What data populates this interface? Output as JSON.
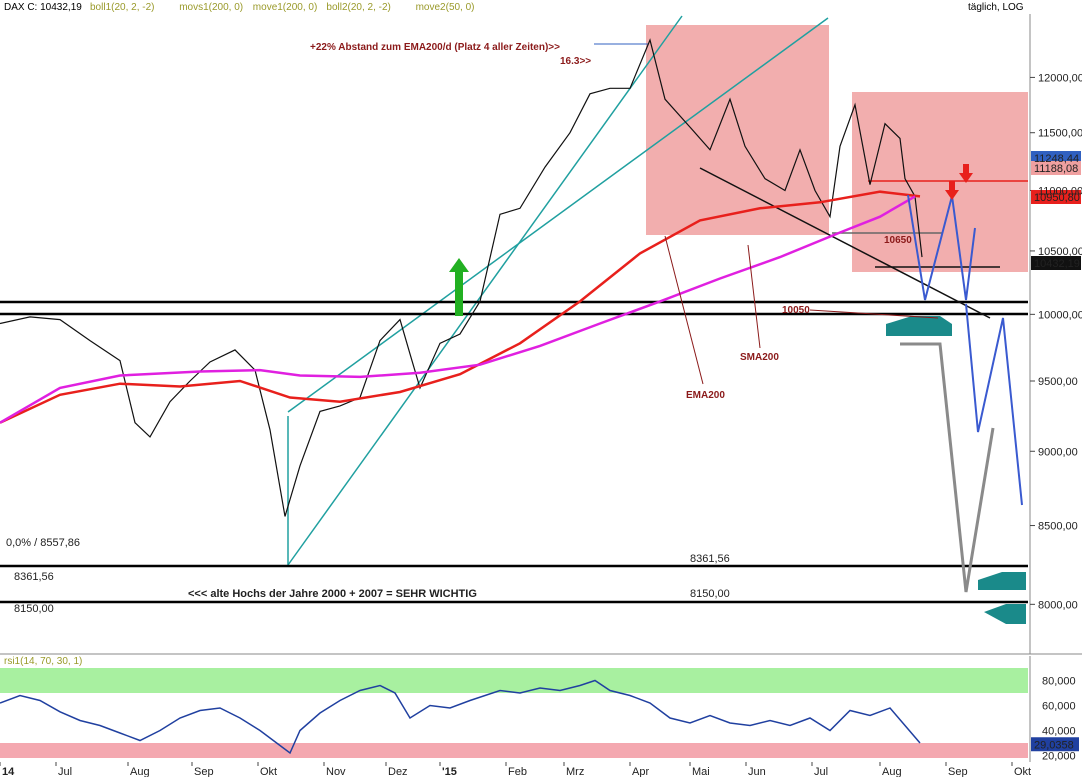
{
  "header": {
    "symbol": "DAX C: 10432,19",
    "indicators": [
      {
        "text": "boll1(20, 2, -2)",
        "color": "#9a9a2a"
      },
      {
        "text": "movs1(200, 0)",
        "color": "#9a9a2a"
      },
      {
        "text": "move1(200, 0)",
        "color": "#9a9a2a"
      },
      {
        "text": "boll2(20, 2, -2)",
        "color": "#9a9a2a"
      },
      {
        "text": "move2(50, 0)",
        "color": "#9a9a2a"
      }
    ],
    "scale": "täglich, LOG"
  },
  "rsi_header": "rsi1(14, 70, 30, 1)",
  "chart_data": [
    {
      "type": "line",
      "title": "DAX C: 10432,19",
      "log_scale": true,
      "ylim": [
        7700,
        12600
      ],
      "y_ticks": [
        "12000,00",
        "11500,00",
        "11000,00",
        "10500,00",
        "10000,00",
        "9500,00",
        "9000,00",
        "8500,00",
        "8000,00"
      ],
      "y_tick_values": [
        12000,
        11500,
        11000,
        10500,
        10000,
        9500,
        9000,
        8500,
        8000
      ],
      "x_ticks": [
        "14",
        "Jul",
        "Aug",
        "Sep",
        "Okt",
        "Nov",
        "Dez",
        "'15",
        "Feb",
        "Mrz",
        "Apr",
        "Mai",
        "Jun",
        "Jul",
        "Aug",
        "Sep",
        "Okt"
      ],
      "x_tick_index": [
        0,
        56,
        128,
        192,
        258,
        324,
        386,
        440,
        506,
        564,
        630,
        690,
        746,
        812,
        880,
        946,
        1012
      ],
      "series": [
        {
          "name": "DAX",
          "color": "#111111",
          "points": [
            [
              0,
              9930
            ],
            [
              30,
              9980
            ],
            [
              60,
              9960
            ],
            [
              90,
              9800
            ],
            [
              120,
              9650
            ],
            [
              135,
              9200
            ],
            [
              150,
              9100
            ],
            [
              170,
              9350
            ],
            [
              190,
              9500
            ],
            [
              210,
              9640
            ],
            [
              235,
              9730
            ],
            [
              255,
              9580
            ],
            [
              270,
              9150
            ],
            [
              285,
              8560
            ],
            [
              300,
              8900
            ],
            [
              320,
              9280
            ],
            [
              340,
              9320
            ],
            [
              360,
              9380
            ],
            [
              380,
              9800
            ],
            [
              400,
              9960
            ],
            [
              410,
              9700
            ],
            [
              420,
              9450
            ],
            [
              440,
              9780
            ],
            [
              460,
              9850
            ],
            [
              480,
              10100
            ],
            [
              500,
              10800
            ],
            [
              520,
              10850
            ],
            [
              545,
              11200
            ],
            [
              570,
              11500
            ],
            [
              590,
              11850
            ],
            [
              610,
              11900
            ],
            [
              630,
              11900
            ],
            [
              650,
              12350
            ],
            [
              665,
              11800
            ],
            [
              690,
              11550
            ],
            [
              710,
              11350
            ],
            [
              730,
              11800
            ],
            [
              745,
              11380
            ],
            [
              765,
              11100
            ],
            [
              785,
              11000
            ],
            [
              800,
              11350
            ],
            [
              815,
              11000
            ],
            [
              830,
              10780
            ],
            [
              840,
              11380
            ],
            [
              855,
              11750
            ],
            [
              870,
              11050
            ],
            [
              885,
              11580
            ],
            [
              900,
              11450
            ],
            [
              905,
              11100
            ],
            [
              915,
              10950
            ],
            [
              922,
              10450
            ]
          ]
        },
        {
          "name": "EMA200",
          "color": "#e8201c",
          "points": [
            [
              0,
              9200
            ],
            [
              60,
              9400
            ],
            [
              120,
              9480
            ],
            [
              180,
              9460
            ],
            [
              240,
              9500
            ],
            [
              290,
              9380
            ],
            [
              340,
              9350
            ],
            [
              400,
              9420
            ],
            [
              460,
              9550
            ],
            [
              520,
              9780
            ],
            [
              580,
              10100
            ],
            [
              640,
              10480
            ],
            [
              700,
              10750
            ],
            [
              760,
              10850
            ],
            [
              820,
              10900
            ],
            [
              880,
              10990
            ],
            [
              920,
              10950
            ]
          ]
        },
        {
          "name": "SMA200",
          "color": "#e020e0",
          "points": [
            [
              0,
              9200
            ],
            [
              60,
              9450
            ],
            [
              120,
              9540
            ],
            [
              200,
              9570
            ],
            [
              260,
              9580
            ],
            [
              300,
              9540
            ],
            [
              360,
              9530
            ],
            [
              420,
              9560
            ],
            [
              480,
              9620
            ],
            [
              540,
              9760
            ],
            [
              600,
              9930
            ],
            [
              660,
              10100
            ],
            [
              720,
              10280
            ],
            [
              780,
              10450
            ],
            [
              840,
              10650
            ],
            [
              880,
              10780
            ],
            [
              915,
              10950
            ]
          ]
        }
      ],
      "annotations": [
        {
          "text": "+22% Abstand zum EMA200/d (Platz 4 aller Zeiten)>>",
          "color": "#8b1a1a"
        },
        {
          "text": "16.3>>",
          "color": "#8b1a1a"
        },
        {
          "text": "10650",
          "color": "#8b1a1a"
        },
        {
          "text": "10050",
          "color": "#8b1a1a"
        },
        {
          "text": "SMA200",
          "color": "#8b1a1a"
        },
        {
          "text": "EMA200",
          "color": "#8b1a1a"
        },
        {
          "text": "<<< alte Hochs der Jahre 2000 + 2007 = SEHR WICHTIG",
          "color": "#222222"
        },
        {
          "text": "8361,56",
          "color": "#222222"
        },
        {
          "text": "8150,00",
          "color": "#222222"
        },
        {
          "text": "0,0% / 8557,86",
          "color": "#2a9a9a"
        }
      ],
      "price_labels": [
        {
          "text": "11248,44",
          "bg": "#3060c0"
        },
        {
          "text": "11188,08",
          "bg": "#f0a0a0"
        },
        {
          "text": "10950,80",
          "bg": "#e8201c"
        },
        {
          "text": "10432,19",
          "bg": "#111111"
        }
      ]
    },
    {
      "type": "line",
      "title": "rsi1(14, 70, 30, 1)",
      "ylim": [
        18,
        90
      ],
      "y_ticks": [
        "80,000",
        "60,000",
        "40,000",
        "20,000"
      ],
      "y_tick_values": [
        80,
        60,
        40,
        20
      ],
      "bands": [
        {
          "from": 70,
          "to": 90,
          "color": "#a8f0a0"
        },
        {
          "from": 18,
          "to": 30,
          "color": "#f4a8b0"
        }
      ],
      "last_value": "29,0358",
      "series": [
        {
          "name": "RSI",
          "color": "#2040a0",
          "points": [
            [
              0,
              62
            ],
            [
              20,
              68
            ],
            [
              40,
              64
            ],
            [
              60,
              55
            ],
            [
              80,
              48
            ],
            [
              100,
              44
            ],
            [
              120,
              38
            ],
            [
              140,
              32
            ],
            [
              160,
              40
            ],
            [
              180,
              50
            ],
            [
              200,
              56
            ],
            [
              220,
              58
            ],
            [
              240,
              50
            ],
            [
              260,
              40
            ],
            [
              280,
              28
            ],
            [
              290,
              22
            ],
            [
              300,
              40
            ],
            [
              320,
              54
            ],
            [
              340,
              64
            ],
            [
              360,
              72
            ],
            [
              380,
              76
            ],
            [
              395,
              70
            ],
            [
              410,
              50
            ],
            [
              430,
              60
            ],
            [
              450,
              58
            ],
            [
              470,
              64
            ],
            [
              500,
              72
            ],
            [
              520,
              70
            ],
            [
              540,
              74
            ],
            [
              560,
              72
            ],
            [
              580,
              76
            ],
            [
              595,
              80
            ],
            [
              610,
              72
            ],
            [
              630,
              68
            ],
            [
              650,
              62
            ],
            [
              670,
              50
            ],
            [
              690,
              46
            ],
            [
              710,
              52
            ],
            [
              730,
              46
            ],
            [
              750,
              44
            ],
            [
              770,
              48
            ],
            [
              790,
              44
            ],
            [
              810,
              50
            ],
            [
              830,
              40
            ],
            [
              850,
              56
            ],
            [
              870,
              52
            ],
            [
              890,
              58
            ],
            [
              905,
              44
            ],
            [
              920,
              30
            ]
          ]
        }
      ]
    }
  ]
}
